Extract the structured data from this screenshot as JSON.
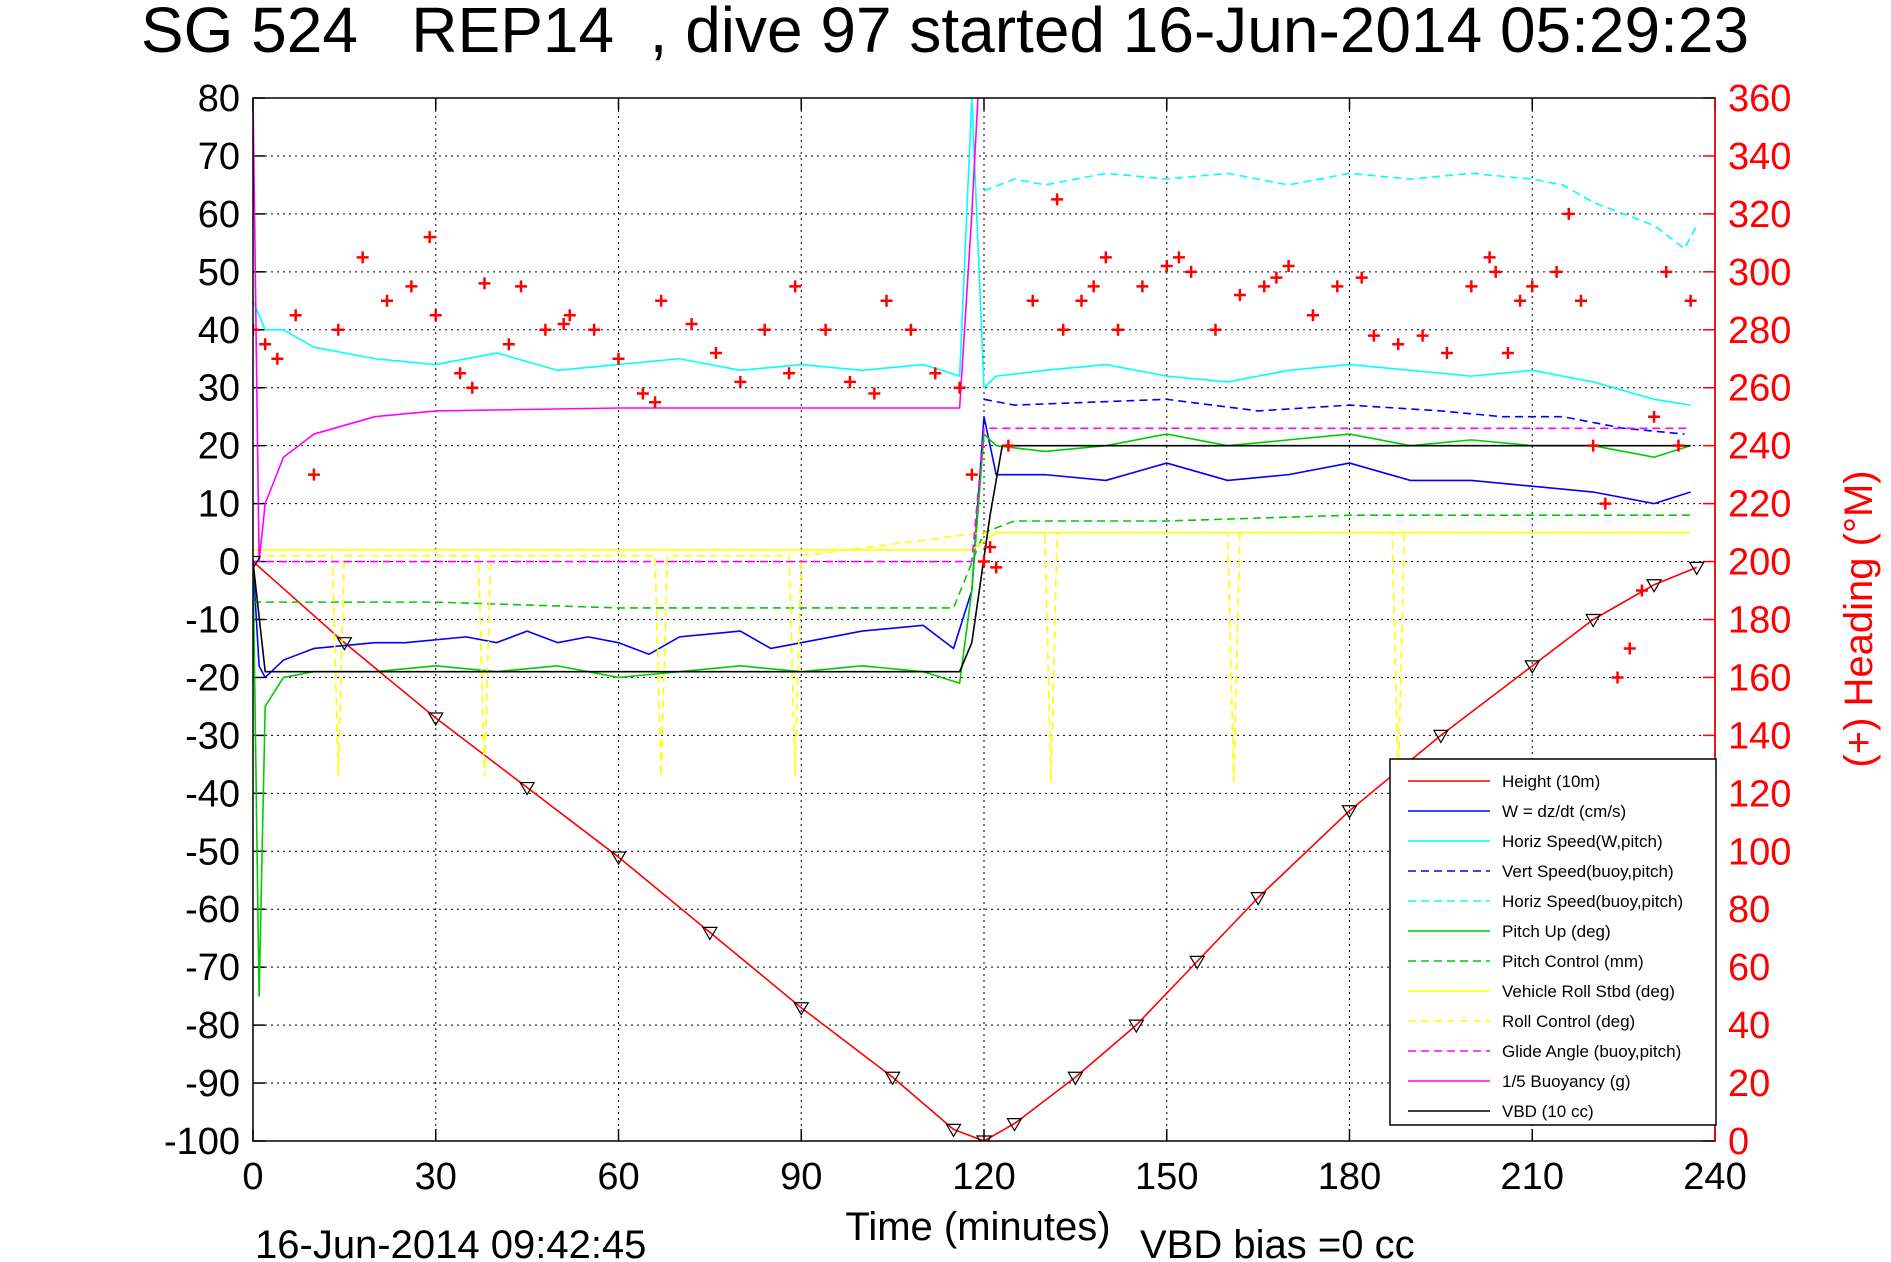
{
  "chart_data": {
    "type": "line",
    "title": "SG 524   REP14  , dive 97 started 16-Jun-2014 05:29:23",
    "xlabel": "Time (minutes)",
    "ylabel_right": "(+) Heading (°M)",
    "footer_left": "16-Jun-2014 09:42:45",
    "footer_right": "VBD bias =0 cc",
    "xlim": [
      0,
      240
    ],
    "ylim": [
      -100,
      80
    ],
    "ylim_right": [
      0,
      360
    ],
    "x_ticks": [
      "0",
      "30",
      "60",
      "90",
      "120",
      "150",
      "180",
      "210",
      "240"
    ],
    "y_ticks": [
      "80",
      "70",
      "60",
      "50",
      "40",
      "30",
      "20",
      "10",
      "0",
      "-10",
      "-20",
      "-30",
      "-40",
      "-50",
      "-60",
      "-70",
      "-80",
      "-90",
      "-100"
    ],
    "y_ticks_right": [
      "360",
      "340",
      "320",
      "300",
      "280",
      "260",
      "240",
      "220",
      "200",
      "180",
      "160",
      "140",
      "120",
      "100",
      "80",
      "60",
      "40",
      "20",
      "0"
    ],
    "grid": true,
    "legend_position": "bottom-right",
    "series": [
      {
        "name": "Height (10m)",
        "color": "#ff0000",
        "style": "solid",
        "x": [
          0,
          15,
          30,
          45,
          60,
          75,
          90,
          105,
          115,
          120,
          125,
          135,
          145,
          155,
          165,
          180,
          195,
          210,
          220,
          230,
          237
        ],
        "y": [
          0,
          -14,
          -27,
          -39,
          -51,
          -64,
          -77,
          -89,
          -98,
          -100,
          -97,
          -89,
          -80,
          -69,
          -58,
          -43,
          -30,
          -18,
          -10,
          -4,
          -1
        ]
      },
      {
        "name": "W = dz/dt (cm/s)",
        "color": "#0000ff",
        "style": "solid",
        "x": [
          0,
          1,
          2,
          5,
          10,
          20,
          25,
          35,
          40,
          45,
          50,
          55,
          60,
          65,
          70,
          80,
          85,
          90,
          100,
          110,
          115,
          118,
          120,
          122,
          130,
          140,
          150,
          160,
          170,
          180,
          190,
          200,
          210,
          220,
          230,
          236
        ],
        "y": [
          0,
          -18,
          -20,
          -17,
          -15,
          -14,
          -14,
          -13,
          -14,
          -12,
          -14,
          -13,
          -14,
          -16,
          -13,
          -12,
          -15,
          -14,
          -12,
          -11,
          -15,
          -5,
          25,
          15,
          15,
          14,
          17,
          14,
          15,
          17,
          14,
          14,
          13,
          12,
          10,
          12
        ]
      },
      {
        "name": "Horiz Speed(W,pitch)",
        "color": "#00ffff",
        "style": "solid",
        "x": [
          0,
          2,
          5,
          10,
          20,
          30,
          40,
          50,
          60,
          70,
          80,
          90,
          100,
          110,
          116,
          118,
          120,
          122,
          130,
          140,
          150,
          160,
          170,
          180,
          190,
          200,
          210,
          220,
          230,
          236
        ],
        "y": [
          45,
          40,
          40,
          37,
          35,
          34,
          36,
          33,
          34,
          35,
          33,
          34,
          33,
          34,
          32,
          80,
          30,
          32,
          33,
          34,
          32,
          31,
          33,
          34,
          33,
          32,
          33,
          31,
          28,
          27
        ]
      },
      {
        "name": "Vert Speed(buoy,pitch)",
        "color": "#0000ff",
        "style": "dashed",
        "x": [
          120,
          125,
          150,
          165,
          180,
          195,
          205,
          215,
          225,
          235
        ],
        "y": [
          28,
          27,
          28,
          26,
          27,
          26,
          25,
          25,
          23,
          22
        ]
      },
      {
        "name": "Horiz Speed(buoy,pitch)",
        "color": "#00ffff",
        "style": "dashed",
        "x": [
          120,
          125,
          130,
          140,
          150,
          160,
          170,
          180,
          190,
          200,
          210,
          215,
          220,
          230,
          235,
          237
        ],
        "y": [
          64,
          66,
          65,
          67,
          66,
          67,
          65,
          67,
          66,
          67,
          66,
          65,
          62,
          58,
          54,
          58
        ]
      },
      {
        "name": "Pitch Up (deg)",
        "color": "#00cc00",
        "style": "solid",
        "x": [
          0,
          1,
          2,
          5,
          10,
          20,
          30,
          40,
          50,
          60,
          70,
          80,
          90,
          100,
          110,
          116,
          118,
          120,
          122,
          130,
          140,
          150,
          160,
          170,
          180,
          190,
          200,
          210,
          220,
          230,
          236
        ],
        "y": [
          0,
          -75,
          -25,
          -20,
          -19,
          -19,
          -18,
          -19,
          -18,
          -20,
          -19,
          -18,
          -19,
          -18,
          -19,
          -21,
          -5,
          22,
          20,
          19,
          20,
          22,
          20,
          21,
          22,
          20,
          21,
          20,
          20,
          18,
          20
        ]
      },
      {
        "name": "Pitch Control (mm)",
        "color": "#00cc00",
        "style": "dashed",
        "x": [
          0,
          10,
          30,
          60,
          90,
          115,
          120,
          125,
          150,
          180,
          210,
          236
        ],
        "y": [
          -7,
          -7,
          -7,
          -8,
          -8,
          -8,
          5,
          7,
          7,
          8,
          8,
          8
        ]
      },
      {
        "name": "Vehicle Roll Stbd (deg)",
        "color": "#ffff00",
        "style": "solid",
        "x": [
          0,
          30,
          60,
          90,
          118,
          122,
          150,
          180,
          210,
          236
        ],
        "y": [
          2,
          2,
          2,
          2,
          2,
          5,
          5,
          5,
          5,
          5
        ]
      },
      {
        "name": "Roll Control (deg)",
        "color": "#ffff00",
        "style": "dashed",
        "x": [
          0,
          13,
          14,
          15,
          37,
          38,
          39,
          66,
          67,
          68,
          88,
          89,
          90,
          120,
          130,
          131,
          132,
          160,
          161,
          162,
          187,
          188,
          189,
          236
        ],
        "y": [
          1,
          1,
          -37,
          1,
          1,
          -37,
          1,
          1,
          -37,
          1,
          1,
          -37,
          1,
          5,
          5,
          -38,
          5,
          5,
          -38,
          5,
          5,
          -38,
          5,
          5
        ]
      },
      {
        "name": "Glide Angle (buoy,pitch)",
        "color": "#ff00ff",
        "style": "dashed",
        "x": [
          0,
          118,
          120,
          236
        ],
        "y": [
          0,
          0,
          23,
          23
        ]
      },
      {
        "name": "1/5 Buoyancy (g)",
        "color": "#ff00ff",
        "style": "solid",
        "x": [
          0,
          1,
          2,
          5,
          10,
          20,
          30,
          60,
          90,
          116,
          118,
          119
        ],
        "y": [
          80,
          0,
          10,
          18,
          22,
          25,
          26,
          26.5,
          26.5,
          26.5,
          60,
          80
        ]
      },
      {
        "name": "VBD (10 cc)",
        "color": "#000000",
        "style": "solid",
        "x": [
          0,
          2,
          10,
          60,
          116,
          118,
          121,
          123,
          236
        ],
        "y": [
          0,
          -19,
          -19,
          -19,
          -19,
          -14,
          8,
          20,
          20
        ]
      },
      {
        "name": "Heading",
        "axis": "right",
        "color": "#ff0000",
        "style": "markers",
        "x": [
          0,
          2,
          4,
          7,
          10,
          14,
          18,
          22,
          26,
          29,
          30,
          34,
          36,
          38,
          42,
          44,
          48,
          51,
          52,
          56,
          60,
          64,
          66,
          67,
          72,
          76,
          80,
          84,
          88,
          89,
          94,
          98,
          102,
          104,
          108,
          112,
          116,
          118,
          120,
          121,
          122,
          124,
          128,
          132,
          133,
          136,
          138,
          140,
          142,
          146,
          150,
          152,
          154,
          158,
          162,
          166,
          168,
          170,
          174,
          178,
          182,
          184,
          188,
          192,
          196,
          200,
          203,
          204,
          206,
          208,
          210,
          214,
          216,
          218,
          220,
          222,
          224,
          226,
          228,
          230,
          232,
          234,
          236
        ],
        "y": [
          280,
          275,
          270,
          285,
          230,
          280,
          305,
          290,
          295,
          312,
          285,
          265,
          260,
          296,
          275,
          295,
          280,
          282,
          285,
          280,
          270,
          258,
          255,
          290,
          282,
          272,
          262,
          280,
          265,
          295,
          280,
          262,
          258,
          290,
          280,
          265,
          260,
          230,
          200,
          205,
          198,
          240,
          290,
          325,
          280,
          290,
          295,
          305,
          280,
          295,
          302,
          305,
          300,
          280,
          292,
          295,
          298,
          302,
          285,
          295,
          298,
          278,
          275,
          278,
          272,
          295,
          305,
          300,
          272,
          290,
          295,
          300,
          320,
          290,
          240,
          220,
          160,
          170,
          190,
          250,
          300,
          240,
          290
        ]
      }
    ]
  }
}
